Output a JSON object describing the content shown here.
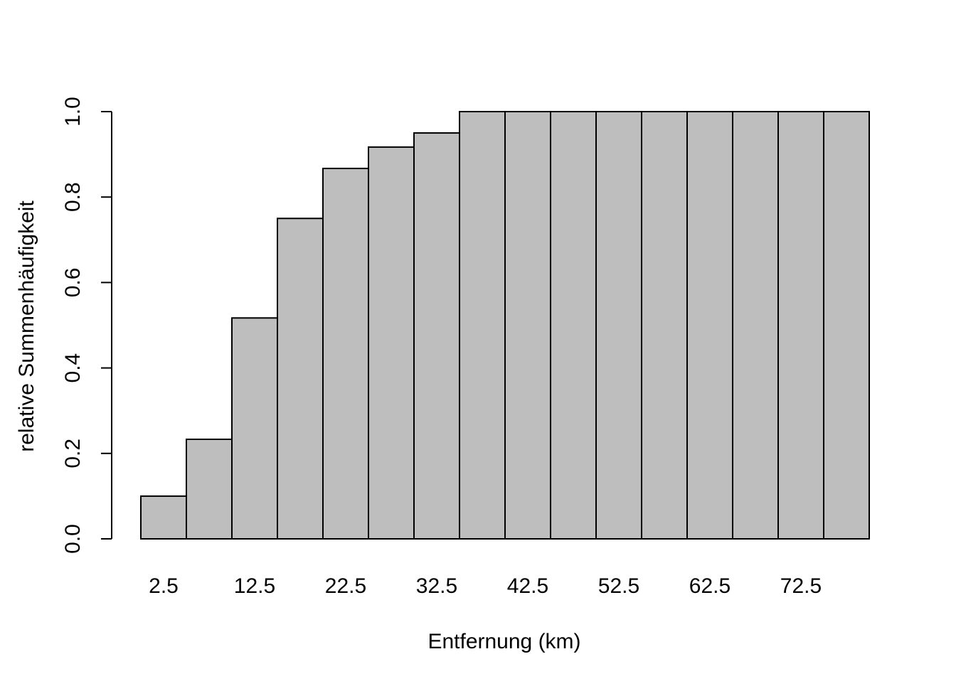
{
  "chart_data": {
    "type": "bar",
    "title": "",
    "xlabel": "Entfernung (km)",
    "ylabel": "relative Summenhäufigkeit",
    "categories": [
      "2.5",
      "7.5",
      "12.5",
      "17.5",
      "22.5",
      "27.5",
      "32.5",
      "37.5",
      "42.5",
      "47.5",
      "52.5",
      "57.5",
      "62.5",
      "67.5",
      "72.5",
      "77.5"
    ],
    "x_tick_labels": [
      "2.5",
      "12.5",
      "22.5",
      "32.5",
      "42.5",
      "52.5",
      "62.5",
      "72.5"
    ],
    "values": [
      0.1,
      0.233,
      0.517,
      0.75,
      0.867,
      0.917,
      0.95,
      1.0,
      1.0,
      1.0,
      1.0,
      1.0,
      1.0,
      1.0,
      1.0,
      1.0
    ],
    "ylim": [
      0,
      1
    ],
    "y_ticks": [
      "0.0",
      "0.2",
      "0.4",
      "0.6",
      "0.8",
      "1.0"
    ],
    "grid": false,
    "bar_color": "#bebebe",
    "edge_color": "#000000"
  }
}
